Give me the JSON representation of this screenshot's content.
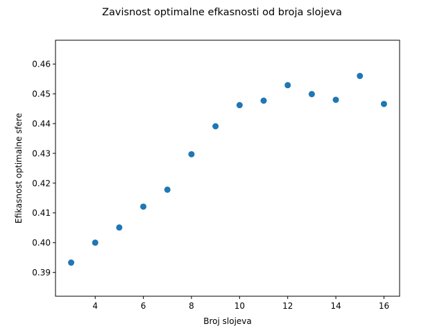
{
  "chart_data": {
    "type": "scatter",
    "title": "Zavisnost optimalne efkasnosti od broja slojeva",
    "xlabel": "Broj slojeva",
    "ylabel": "Efikasnost optimalne sfere",
    "xlim": [
      2.35,
      16.65
    ],
    "ylim": [
      0.382,
      0.468
    ],
    "xticks": [
      4,
      6,
      8,
      10,
      12,
      14,
      16
    ],
    "yticks": [
      0.39,
      0.4,
      0.41,
      0.42,
      0.43,
      0.44,
      0.45,
      0.46
    ],
    "ytick_labels": [
      "0.39",
      "0.40",
      "0.41",
      "0.42",
      "0.43",
      "0.44",
      "0.45",
      "0.46"
    ],
    "marker_color": "#1f77b4",
    "grid": false,
    "x": [
      3,
      4,
      5,
      6,
      7,
      8,
      9,
      10,
      11,
      12,
      13,
      14,
      15,
      16
    ],
    "y": [
      0.3933,
      0.4,
      0.4051,
      0.4121,
      0.4178,
      0.4297,
      0.4391,
      0.4462,
      0.4477,
      0.4529,
      0.4499,
      0.448,
      0.456,
      0.4466
    ]
  }
}
